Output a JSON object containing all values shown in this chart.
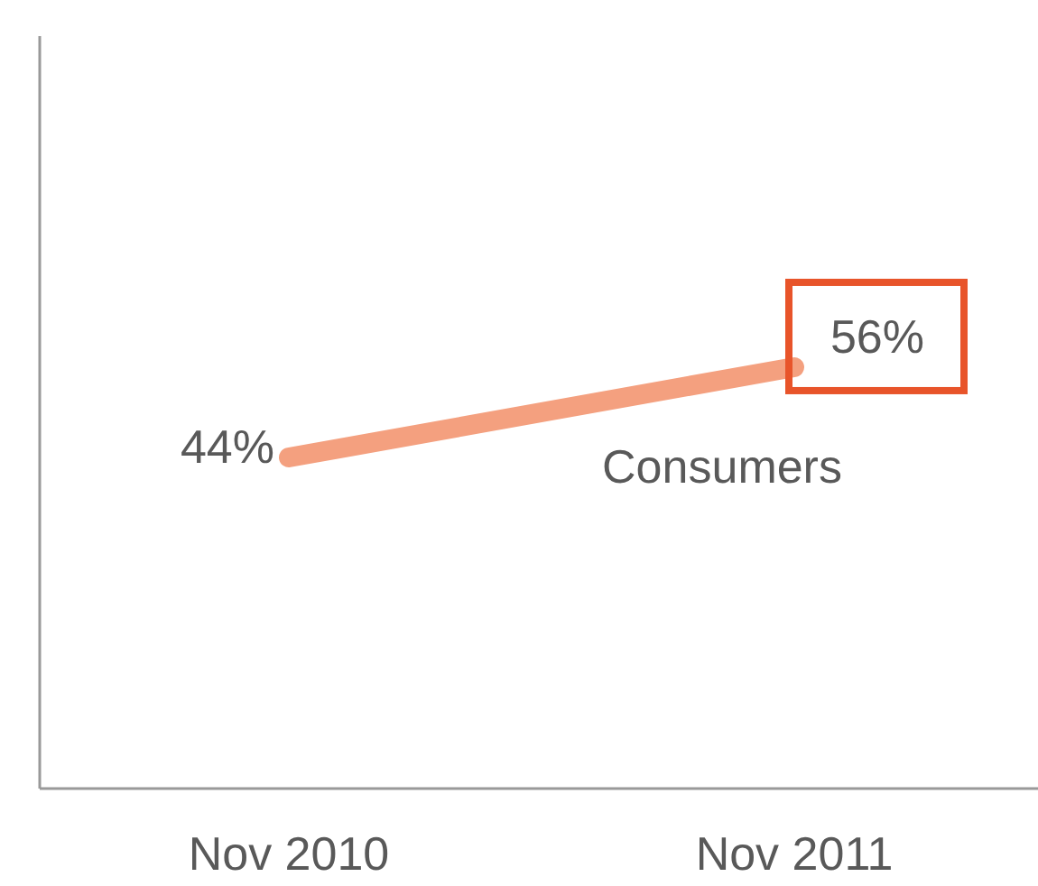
{
  "chart_data": {
    "type": "line",
    "categories": [
      "Nov 2010",
      "Nov 2011"
    ],
    "series": [
      {
        "name": "Consumers",
        "color": "#f4a07f",
        "values": [
          44,
          56
        ],
        "value_labels": [
          "44%",
          "56%"
        ]
      }
    ],
    "ylim": [
      0,
      100
    ],
    "tick_labels": "x",
    "marker": "none",
    "line_style": "solid"
  }
}
